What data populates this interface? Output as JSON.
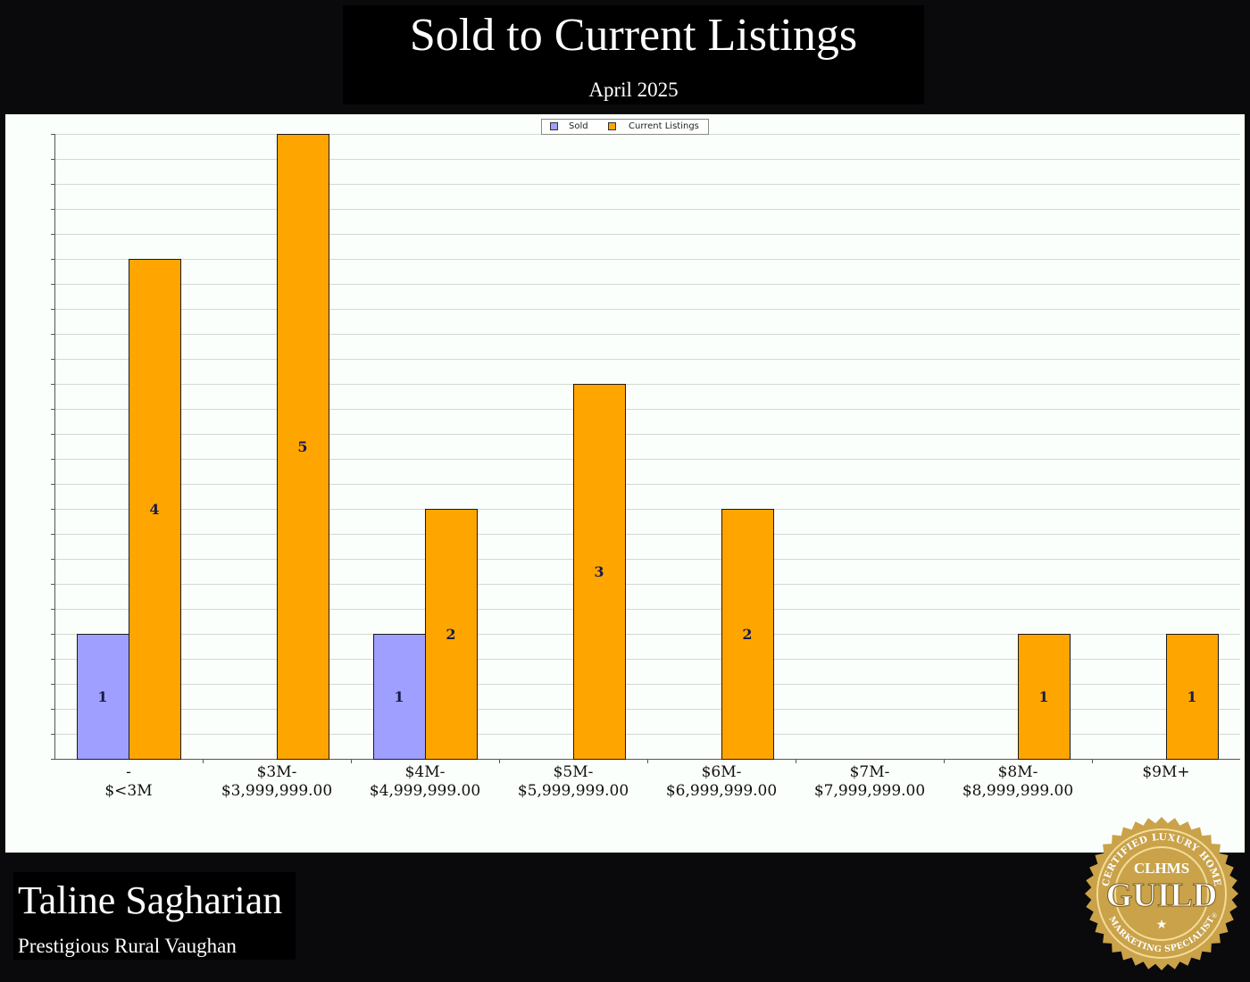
{
  "header": {
    "title": "Sold to Current Listings",
    "subtitle": "April 2025"
  },
  "legend": {
    "position": "top-center",
    "items": [
      {
        "label": "Sold",
        "color": "#9f9fff"
      },
      {
        "label": "Current Listings",
        "color": "#ffa500"
      }
    ]
  },
  "chart_data": {
    "type": "bar",
    "title": "Sold to Current Listings",
    "subtitle": "April 2025",
    "xlabel": "",
    "ylabel": "",
    "ylim": [
      0,
      5
    ],
    "grid": true,
    "categories": [
      [
        "-",
        "$<3M"
      ],
      [
        "$3M-",
        "$3,999,999.00"
      ],
      [
        "$4M-",
        "$4,999,999.00"
      ],
      [
        "$5M-",
        "$5,999,999.00"
      ],
      [
        "$6M-",
        "$6,999,999.00"
      ],
      [
        "$7M-",
        "$7,999,999.00"
      ],
      [
        "$8M-",
        "$8,999,999.00"
      ],
      [
        "$9M+"
      ]
    ],
    "series": [
      {
        "name": "Sold",
        "color": "#9f9fff",
        "values": [
          1,
          0,
          1,
          0,
          0,
          0,
          0,
          0
        ]
      },
      {
        "name": "Current Listings",
        "color": "#ffa500",
        "values": [
          4,
          5,
          2,
          3,
          2,
          0,
          1,
          1
        ]
      }
    ]
  },
  "agent": {
    "name": "Taline Sagharian",
    "area": "Prestigious Rural Vaughan"
  },
  "badge": {
    "top_text": "CERTIFIED LUXURY HOME",
    "bottom_text": "MARKETING SPECIALIST",
    "brand": "CLHMS",
    "main": "GUILD",
    "star": "★",
    "trademark": "®",
    "color": "#c9a24a"
  }
}
